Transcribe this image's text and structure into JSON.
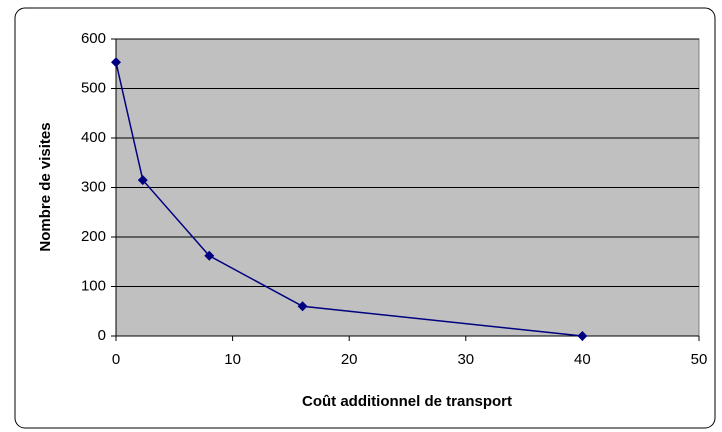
{
  "chart_data": {
    "type": "line",
    "xlabel": "Coût additionnel de transport",
    "ylabel": "Nombre de visites",
    "series": [
      {
        "color": "#000080",
        "x": [
          0,
          2.3,
          8,
          16,
          40
        ],
        "values": [
          553,
          315,
          162,
          60,
          0
        ]
      }
    ],
    "xlim": [
      0,
      50
    ],
    "xticks": [
      0,
      10,
      20,
      30,
      40,
      50
    ],
    "ylim": [
      0,
      600
    ],
    "yticks": [
      0,
      100,
      200,
      300,
      400,
      500,
      600
    ],
    "grid": true,
    "plot_background": "#c0c0c0"
  }
}
